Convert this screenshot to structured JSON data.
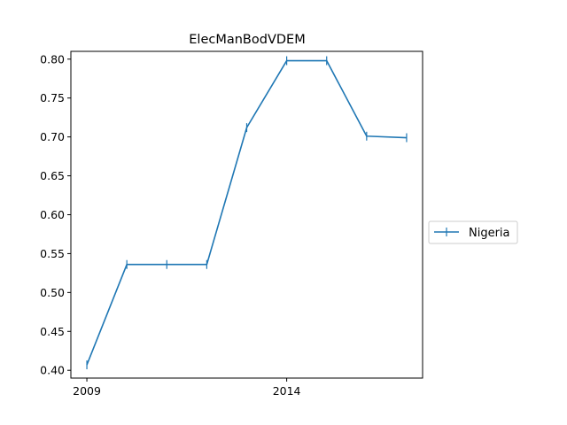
{
  "chart_data": {
    "type": "line",
    "title": "ElecManBodVDEM",
    "xlabel": "",
    "ylabel": "",
    "x": [
      2009,
      2010,
      2011,
      2012,
      2013,
      2014,
      2015,
      2016,
      2017
    ],
    "series": [
      {
        "name": "Nigeria",
        "values": [
          0.407,
          0.536,
          0.536,
          0.536,
          0.712,
          0.798,
          0.798,
          0.701,
          0.699
        ],
        "color": "#1f77b4"
      }
    ],
    "xlim": [
      2008.6,
      2017.4
    ],
    "ylim": [
      0.39,
      0.81
    ],
    "xticks": [
      2009,
      2014
    ],
    "xtick_labels": [
      "2009",
      "2014"
    ],
    "yticks": [
      0.4,
      0.45,
      0.5,
      0.55,
      0.6,
      0.65,
      0.7,
      0.75,
      0.8
    ],
    "ytick_labels": [
      "0.40",
      "0.45",
      "0.50",
      "0.55",
      "0.60",
      "0.65",
      "0.70",
      "0.75",
      "0.80"
    ],
    "grid": false,
    "legend_position": "center-right, outside plot"
  }
}
